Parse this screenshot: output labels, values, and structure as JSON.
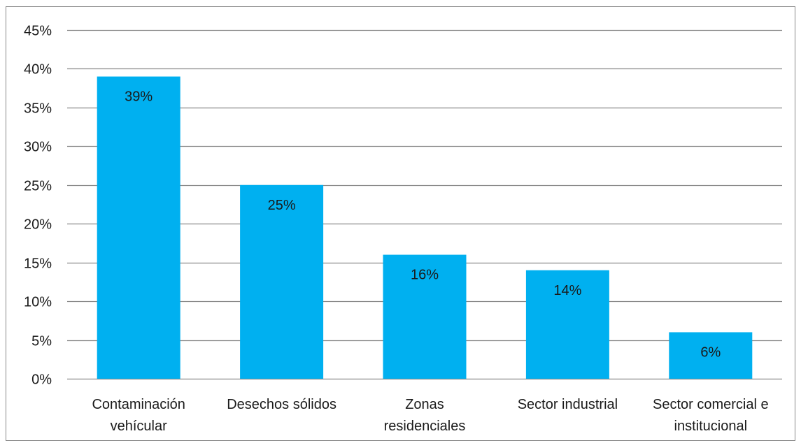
{
  "chart_data": {
    "type": "bar",
    "categories": [
      [
        "Contaminación",
        "vehícular"
      ],
      [
        "Desechos sólidos"
      ],
      [
        "Zonas",
        "residenciales"
      ],
      [
        "Sector industrial"
      ],
      [
        "Sector comercial e",
        "institucional"
      ]
    ],
    "values": [
      39,
      25,
      16,
      14,
      6
    ],
    "data_labels": [
      "39%",
      "25%",
      "16%",
      "14%",
      "6%"
    ],
    "ylim": [
      0,
      45
    ],
    "yticks": [
      0,
      5,
      10,
      15,
      20,
      25,
      30,
      35,
      40,
      45
    ],
    "ytick_labels": [
      "0%",
      "5%",
      "10%",
      "15%",
      "20%",
      "25%",
      "30%",
      "35%",
      "40%",
      "45%"
    ],
    "title": "",
    "xlabel": "",
    "ylabel": "",
    "grid": true,
    "legend": "none",
    "colors": {
      "bar": "#00B0F0",
      "grid": "#898989",
      "border": "#898989",
      "text": "#1a1a1a"
    }
  }
}
